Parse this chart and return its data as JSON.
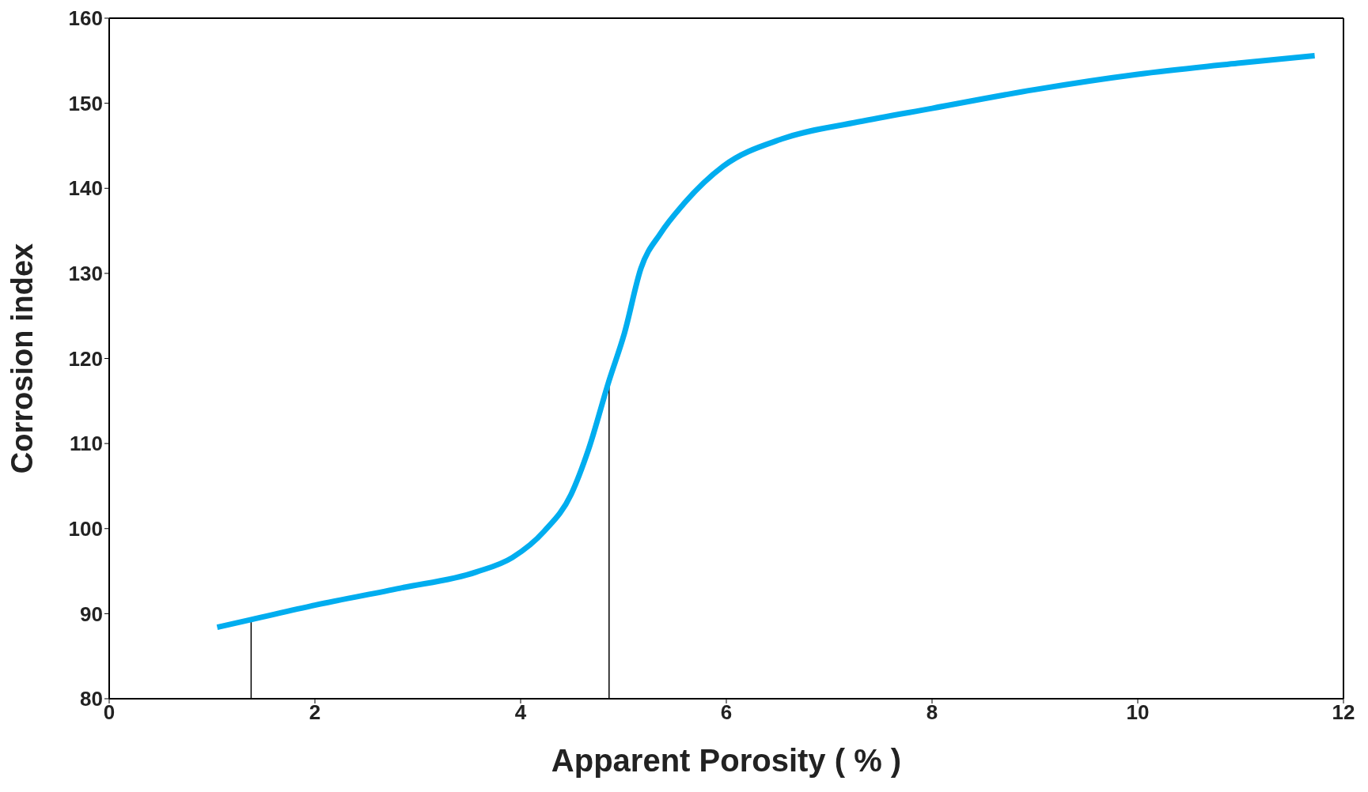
{
  "chart_data": {
    "type": "line",
    "xlabel": "Apparent Porosity ( % )",
    "ylabel": "Corrosion index",
    "x": [
      1.05,
      1.38,
      2.0,
      2.83,
      3.57,
      3.92,
      4.23,
      4.49,
      4.66,
      4.86,
      5.01,
      5.17,
      5.36,
      5.58,
      5.97,
      6.54,
      7.28,
      8.0,
      9.0,
      10.0,
      10.97,
      11.72
    ],
    "series": [
      {
        "color": "#00adef",
        "values": [
          88.4,
          89.3,
          91.0,
          93.0,
          94.9,
          96.6,
          99.7,
          104.0,
          109.3,
          117.4,
          123.0,
          130.6,
          134.7,
          138.1,
          142.6,
          145.8,
          147.8,
          149.4,
          151.6,
          153.4,
          154.7,
          155.6
        ]
      }
    ],
    "xlim": [
      0,
      12
    ],
    "xticks": [
      0,
      2,
      4,
      6,
      8,
      10,
      12
    ],
    "ylim": [
      80,
      160
    ],
    "yticks": [
      80,
      90,
      100,
      110,
      120,
      130,
      140,
      150,
      160
    ],
    "ref_lines": [
      {
        "axis": "x",
        "value": 1.38,
        "color": "#000000"
      },
      {
        "axis": "x",
        "value": 4.86,
        "color": "#000000"
      }
    ],
    "grid": false,
    "legend": false,
    "marker": "none",
    "line_style": "solid"
  }
}
